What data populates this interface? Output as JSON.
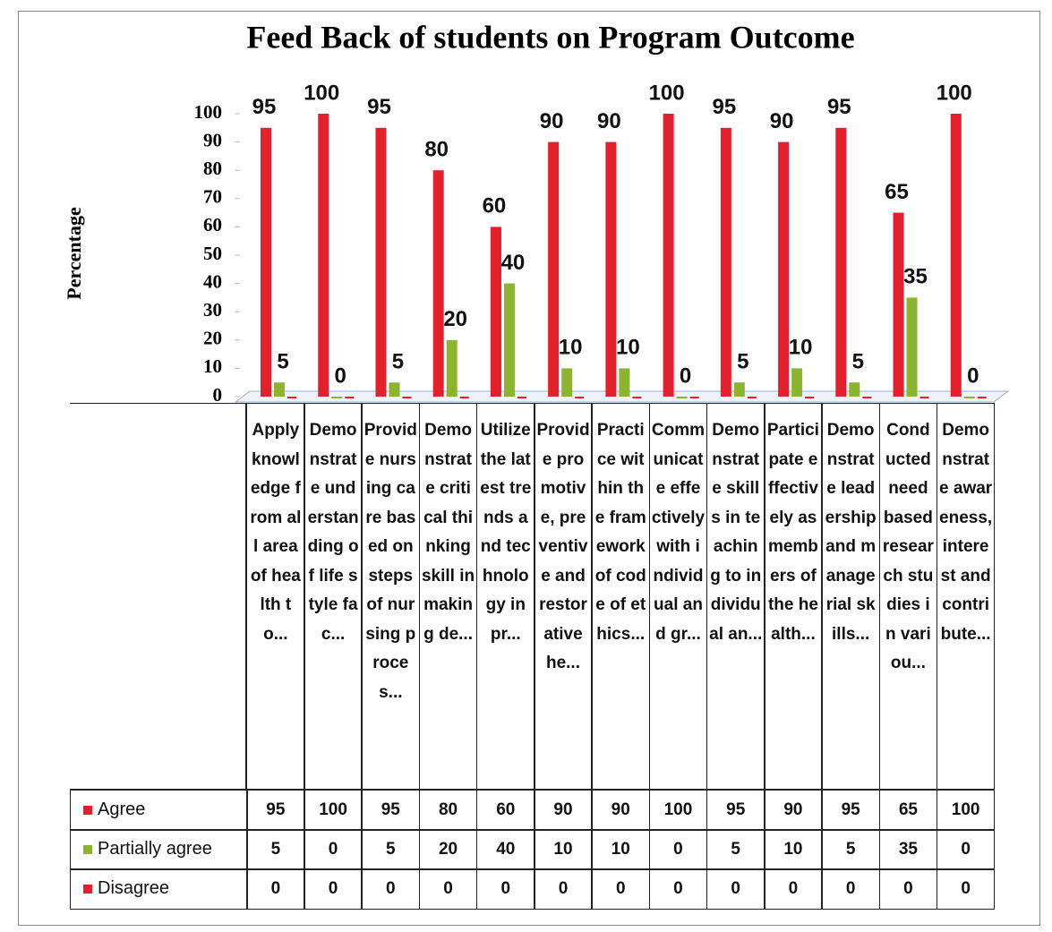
{
  "chart_data": {
    "type": "bar",
    "title": "Feed Back of students on Program Outcome",
    "y_label": "Percentage",
    "categories": [
      "Apply knowledge from all area of health to...",
      "Demonstrate understanding of life style fac...",
      "Provide nursing care based on steps of nursing proces...",
      "Demonstrate critical thinking skill in making de...",
      "Utilize the latest trends and technology in pr...",
      "Provide promotive, preventive and restorative he...",
      "Practice within the framework of code of ethics...",
      "Communicate effectively with individual and gr...",
      "Demonstrate skills in teaching to individual an...",
      "Participate effectively as members of the health...",
      "Demonstrate leadership and managerial skills...",
      "Conducted need based research studies in variou...",
      "Demonstrate awareness, interest and contribute..."
    ],
    "series": [
      {
        "name": "Agree",
        "color": "#e3202b",
        "values": [
          95,
          100,
          95,
          80,
          60,
          90,
          90,
          100,
          95,
          90,
          95,
          65,
          100
        ]
      },
      {
        "name": "Partially agree",
        "color": "#8cb431",
        "values": [
          5,
          0,
          5,
          20,
          40,
          10,
          10,
          0,
          5,
          10,
          5,
          35,
          0
        ]
      },
      {
        "name": "Disagree",
        "color": "#e3202b",
        "values": [
          0,
          0,
          0,
          0,
          0,
          0,
          0,
          0,
          0,
          0,
          0,
          0,
          0
        ]
      }
    ],
    "ylim": [
      0,
      100
    ],
    "yticks": [
      0,
      10,
      20,
      30,
      40,
      50,
      60,
      70,
      80,
      90,
      100
    ],
    "grid": false
  }
}
